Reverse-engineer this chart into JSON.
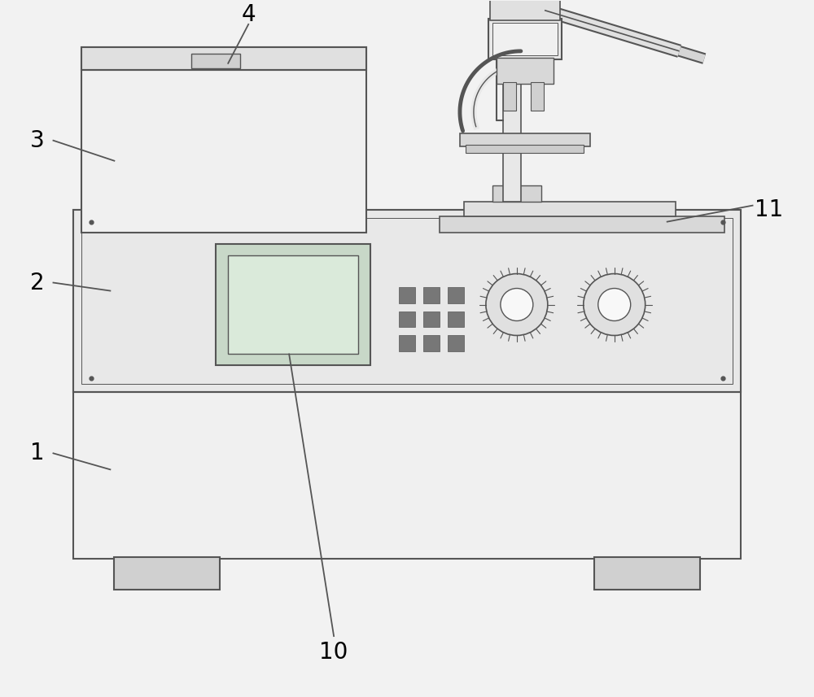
{
  "bg_color": "#f2f2f2",
  "line_color": "#555555",
  "line_color_dark": "#333333",
  "line_width": 1.5,
  "figure_size": [
    10.0,
    8.57
  ],
  "dpi": 100,
  "panel_fill": "#ebebeb",
  "box_fill": "#f0f0f0",
  "screen_fill_outer": "#c8d8c8",
  "screen_fill_inner": "#daeada",
  "btn_fill": "#888888",
  "knob_fill": "#aaaaaa",
  "knob_inner_fill": "#ffffff",
  "foot_fill": "#cccccc",
  "micro_fill": "#e8e8e8",
  "micro_dark": "#cccccc"
}
